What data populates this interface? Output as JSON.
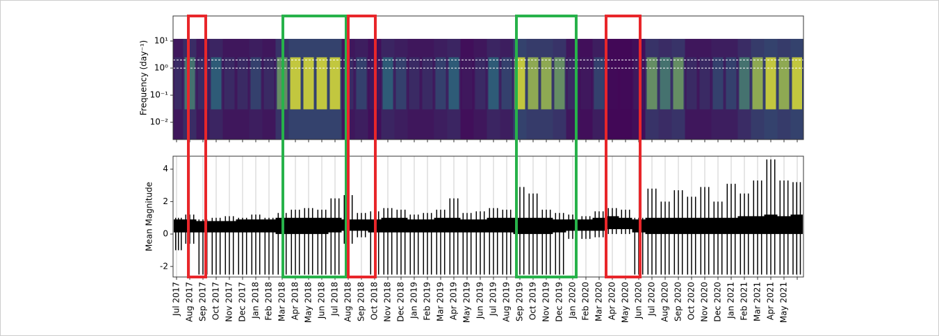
{
  "chart_data": [
    {
      "type": "heatmap",
      "ylabel": "Frequency (day⁻¹)",
      "log_y": true,
      "ylim": [
        0.0023,
        84
      ],
      "extent": [
        0.0023,
        12
      ],
      "yticks": [
        {
          "value": 10,
          "label": "10¹"
        },
        {
          "value": 1,
          "label": "10⁰"
        },
        {
          "value": 0.1,
          "label": "10⁻¹"
        },
        {
          "value": 0.01,
          "label": "10⁻²"
        }
      ],
      "reference_lines": [
        1,
        2
      ],
      "colormap": [
        "#440154",
        "#21918c",
        "#fde725"
      ],
      "values": [
        0.3,
        0.6,
        0.3,
        0.5,
        0.3,
        0.3,
        0.4,
        0.3,
        0.7,
        0.9,
        0.9,
        0.9,
        0.9,
        0.3,
        0.4,
        0.2,
        0.5,
        0.4,
        0.3,
        0.3,
        0.4,
        0.5,
        0.2,
        0.3,
        0.5,
        0.4,
        0.9,
        0.8,
        0.8,
        0.7,
        0.3,
        0.2,
        0.4,
        0.1,
        0.1,
        0.2,
        0.7,
        0.6,
        0.7,
        0.3,
        0.3,
        0.4,
        0.4,
        0.6,
        0.8,
        0.9,
        0.8,
        0.9
      ]
    },
    {
      "type": "range",
      "ylabel": "Mean Magnitude",
      "color": "#000000",
      "grid": true,
      "ylim": [
        -2.65,
        4.8
      ],
      "yticks": [
        -2,
        0,
        2,
        4
      ],
      "categories": [
        "Jul 2017",
        "Aug 2017",
        "Sep 2017",
        "Oct 2017",
        "Nov 2017",
        "Dec 2017",
        "Jan 2018",
        "Feb 2018",
        "Mar 2018",
        "Apr 2018",
        "May 2018",
        "Jun 2018",
        "Jul 2018",
        "Aug 2018",
        "Sep 2018",
        "Oct 2018",
        "Nov 2018",
        "Dec 2018",
        "Jan 2019",
        "Feb 2019",
        "Mar 2019",
        "Apr 2019",
        "May 2019",
        "Jun 2019",
        "Jul 2019",
        "Aug 2019",
        "Sep 2019",
        "Oct 2019",
        "Nov 2019",
        "Dec 2019",
        "Jan 2020",
        "Feb 2020",
        "Mar 2020",
        "Apr 2020",
        "May 2020",
        "Jun 2020",
        "Jul 2020",
        "Aug 2020",
        "Sep 2020",
        "Oct 2020",
        "Nov 2020",
        "Dec 2020",
        "Jan 2021",
        "Feb 2021",
        "Mar 2021",
        "Apr 2021",
        "May 2021",
        null
      ],
      "max": [
        1.0,
        1.2,
        0.9,
        1.0,
        1.1,
        1.0,
        1.2,
        1.0,
        1.3,
        1.5,
        1.6,
        1.5,
        2.2,
        2.4,
        1.3,
        1.4,
        1.6,
        1.5,
        1.2,
        1.3,
        1.5,
        2.2,
        1.3,
        1.4,
        1.6,
        1.5,
        2.9,
        2.5,
        1.5,
        1.3,
        1.2,
        1.1,
        1.4,
        1.6,
        1.5,
        1.0,
        2.8,
        2.0,
        2.7,
        2.3,
        2.9,
        2.0,
        3.1,
        2.5,
        3.3,
        4.6,
        3.3,
        3.2
      ],
      "min": [
        -1.0,
        -0.6,
        -2.5,
        -2.5,
        -2.5,
        -2.5,
        -2.5,
        -2.5,
        -2.5,
        -2.5,
        -2.5,
        -2.5,
        -2.5,
        -0.6,
        -0.2,
        -2.5,
        -2.5,
        -2.5,
        -2.5,
        -2.5,
        -2.5,
        -2.5,
        -2.5,
        -2.5,
        -2.5,
        -2.5,
        -2.5,
        -2.5,
        -2.5,
        -2.5,
        -0.3,
        -0.3,
        -0.2,
        0,
        0,
        -2.5,
        -2.5,
        -2.5,
        -2.5,
        -2.5,
        -2.5,
        -2.5,
        -2.5,
        -2.5,
        -2.5,
        -2.5,
        -2.5,
        -2.5
      ],
      "core_low": [
        0.1,
        0.1,
        0.1,
        0.1,
        0.1,
        0.1,
        0.1,
        0.1,
        0.0,
        0.0,
        0.0,
        0.0,
        0.1,
        0.2,
        0.2,
        0.1,
        0.1,
        0.1,
        0.1,
        0.1,
        0.1,
        0.1,
        0.1,
        0.1,
        0.1,
        0.1,
        0.0,
        0.0,
        0.0,
        0.1,
        0.2,
        0.2,
        0.2,
        0.3,
        0.3,
        0.1,
        0.0,
        0.0,
        0.0,
        0.0,
        0.0,
        0.0,
        0.0,
        0.0,
        0.0,
        0.0,
        0.0,
        0.0
      ],
      "core_high": [
        0.9,
        0.9,
        0.8,
        0.8,
        0.8,
        0.9,
        0.9,
        0.9,
        1.0,
        1.0,
        1.0,
        1.0,
        1.0,
        0.9,
        0.9,
        0.9,
        1.0,
        1.0,
        0.9,
        0.9,
        1.0,
        1.0,
        0.9,
        0.9,
        1.0,
        1.0,
        1.0,
        1.0,
        1.0,
        0.9,
        0.9,
        0.9,
        1.0,
        1.1,
        1.0,
        0.9,
        1.0,
        1.0,
        1.0,
        1.0,
        1.0,
        1.0,
        1.0,
        1.1,
        1.1,
        1.2,
        1.1,
        1.2
      ]
    }
  ]
}
